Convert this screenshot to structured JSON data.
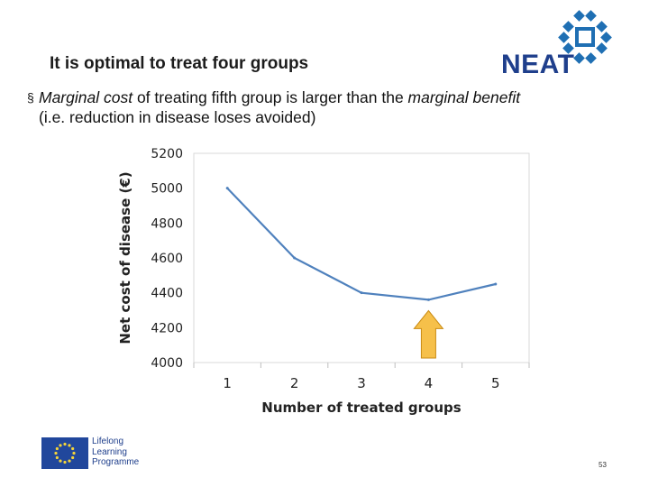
{
  "header": {
    "title": "It is optimal to treat four groups",
    "logo_text": "NEAT",
    "logo_color": "#1f3f8c"
  },
  "bullet": {
    "mark": "§",
    "italic1": "Marginal cost",
    "normal1": " of treating fifth group is larger than the ",
    "italic2": "marginal benefit",
    "line2": "(i.e. reduction in disease loses avoided)"
  },
  "chart_data": {
    "type": "line",
    "title": "",
    "xlabel": "Number of treated groups",
    "ylabel": "Net cost of disease (€)",
    "x": [
      1,
      2,
      3,
      4,
      5
    ],
    "values": [
      5000,
      4600,
      4400,
      4360,
      4450
    ],
    "ylim": [
      4000,
      5200
    ],
    "yticks": [
      4000,
      4200,
      4400,
      4600,
      4800,
      5000,
      5200
    ],
    "line_color": "#4f81bd",
    "grid": false,
    "annotation": {
      "type": "arrow",
      "at_x": 4,
      "color": "#f6c04a",
      "meaning": "optimum"
    }
  },
  "footer": {
    "program_line1": "Lifelong",
    "program_line2": "Learning",
    "program_line3": "Programme",
    "page_number": "53"
  }
}
